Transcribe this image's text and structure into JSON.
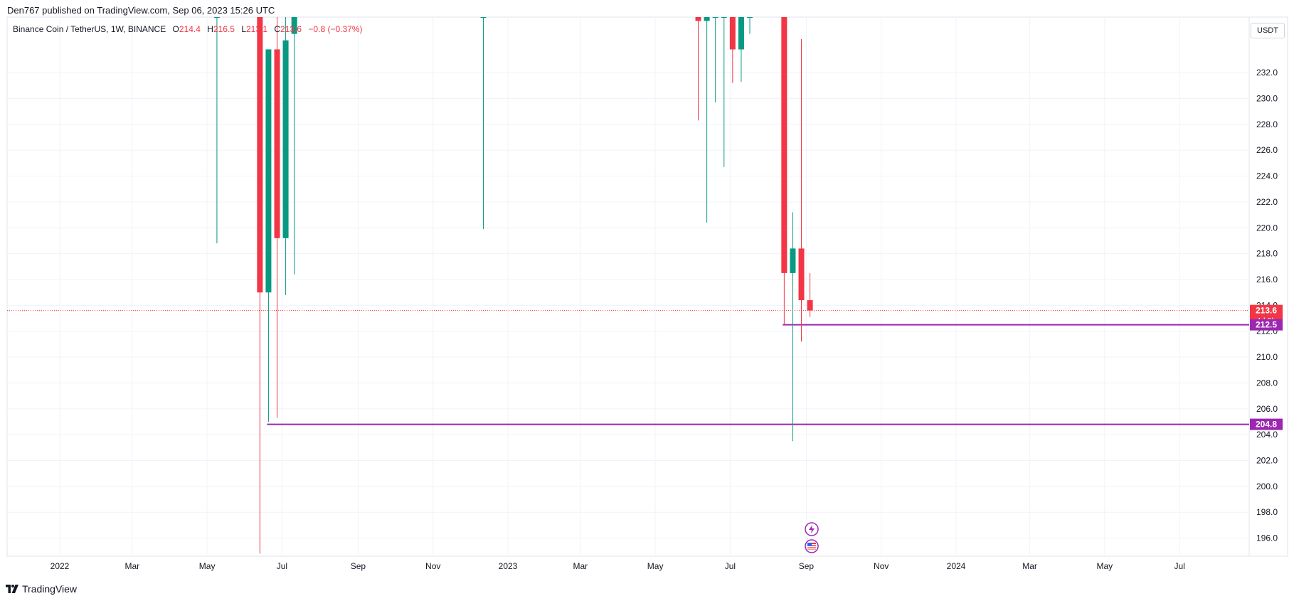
{
  "published_line": "Den767 published on TradingView.com, Sep 06, 2023 15:26 UTC",
  "legend": {
    "symbol": "Binance Coin / TetherUS, 1W, BINANCE",
    "o_label": "O",
    "o_value": "214.4",
    "h_label": "H",
    "h_value": "216.5",
    "l_label": "L",
    "l_value": "213.1",
    "c_label": "C",
    "c_value": "213.6",
    "change": "−0.8 (−0.37%)"
  },
  "currency_button": "USDT",
  "footer_brand": "TradingView",
  "icons": {
    "flash": "lightning-icon",
    "flag": "us-flag-icon",
    "logo": "tradingview-logo-icon"
  },
  "colors": {
    "up": "#089981",
    "down": "#f23645",
    "level_line": "#9c27b0",
    "grid": "#f0f3fa",
    "axis_text": "#131722"
  },
  "chart_data": {
    "type": "candlestick",
    "ylim": [
      194.6,
      236.3
    ],
    "y_ticks": [
      "196.0",
      "198.0",
      "200.0",
      "202.0",
      "204.0",
      "206.0",
      "208.0",
      "210.0",
      "212.0",
      "214.0",
      "216.0",
      "218.0",
      "220.0",
      "222.0",
      "224.0",
      "226.0",
      "228.0",
      "230.0",
      "232.0"
    ],
    "x_ticks": [
      "2022",
      "Mar",
      "May",
      "Jul",
      "Sep",
      "Nov",
      "2023",
      "Mar",
      "May",
      "Jul",
      "Sep",
      "Nov",
      "2024",
      "Mar",
      "May",
      "Jul"
    ],
    "candles": [
      {
        "date": "2022-05-09",
        "open": 236.3,
        "high": 236.3,
        "low": 218.8,
        "close": 236.3
      },
      {
        "date": "2022-06-13",
        "open": 236.3,
        "high": 236.3,
        "low": 194.8,
        "close": 215.0
      },
      {
        "date": "2022-06-20",
        "open": 215.0,
        "high": 233.8,
        "low": 205.0,
        "close": 233.8
      },
      {
        "date": "2022-06-27",
        "open": 233.8,
        "high": 236.3,
        "low": 205.3,
        "close": 219.2
      },
      {
        "date": "2022-07-04",
        "open": 219.2,
        "high": 236.3,
        "low": 214.8,
        "close": 234.5
      },
      {
        "date": "2022-07-11",
        "open": 235.0,
        "high": 236.3,
        "low": 216.4,
        "close": 236.3
      },
      {
        "date": "2022-12-12",
        "open": 236.3,
        "high": 236.3,
        "low": 219.9,
        "close": 236.3
      },
      {
        "date": "2023-06-05",
        "open": 236.3,
        "high": 236.3,
        "low": 228.3,
        "close": 236.0
      },
      {
        "date": "2023-06-12",
        "open": 236.0,
        "high": 236.3,
        "low": 220.4,
        "close": 236.3
      },
      {
        "date": "2023-06-19",
        "open": 236.3,
        "high": 236.3,
        "low": 229.7,
        "close": 236.3
      },
      {
        "date": "2023-06-26",
        "open": 236.3,
        "high": 236.3,
        "low": 224.7,
        "close": 236.3
      },
      {
        "date": "2023-07-03",
        "open": 236.3,
        "high": 236.3,
        "low": 231.2,
        "close": 233.8
      },
      {
        "date": "2023-07-10",
        "open": 233.8,
        "high": 236.3,
        "low": 231.3,
        "close": 236.3
      },
      {
        "date": "2023-07-17",
        "open": 236.3,
        "high": 236.3,
        "low": 235.0,
        "close": 236.3
      },
      {
        "date": "2023-08-14",
        "open": 236.3,
        "high": 236.3,
        "low": 212.5,
        "close": 216.5
      },
      {
        "date": "2023-08-21",
        "open": 216.5,
        "high": 221.2,
        "low": 203.5,
        "close": 218.4
      },
      {
        "date": "2023-08-28",
        "open": 218.4,
        "high": 234.6,
        "low": 211.2,
        "close": 214.4
      },
      {
        "date": "2023-09-04",
        "open": 214.4,
        "high": 216.5,
        "low": 213.1,
        "close": 213.6
      }
    ],
    "levels": [
      {
        "value": 212.5,
        "start": "2023-08-14",
        "label": "212.5"
      },
      {
        "value": 204.8,
        "start": "2022-06-20",
        "label": "204.8"
      }
    ],
    "last_price": {
      "value": 213.6,
      "label": "213.6",
      "countdown": "4d 9h"
    }
  }
}
